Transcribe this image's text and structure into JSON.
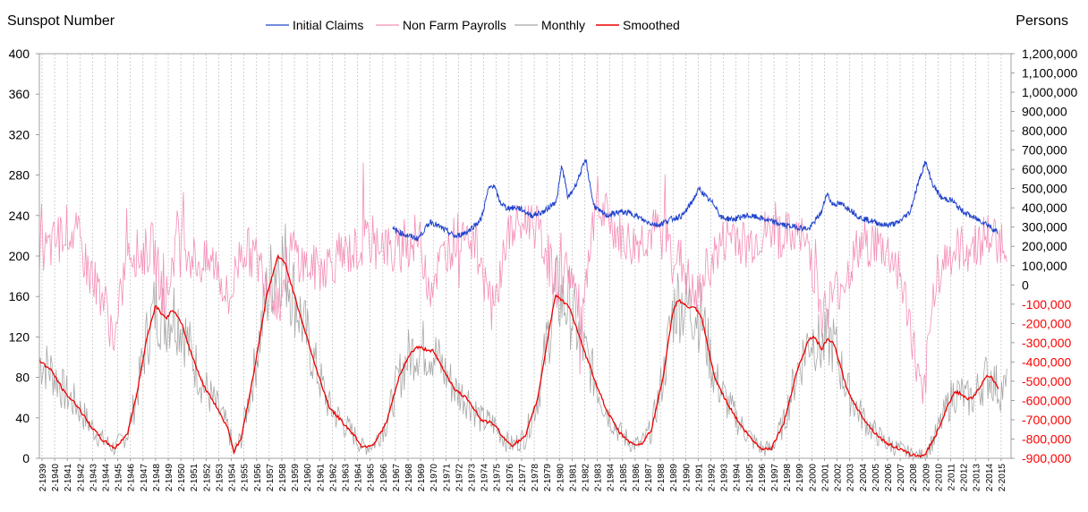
{
  "chart_data": {
    "type": "line",
    "left_axis": {
      "title": "Sunspot Number",
      "min": 0,
      "max": 400,
      "ticks": [
        0,
        40,
        80,
        120,
        160,
        200,
        240,
        280,
        320,
        360,
        400
      ]
    },
    "right_axis": {
      "title": "Persons",
      "min": -900000,
      "max": 1200000,
      "ticks": [
        -900000,
        -800000,
        -700000,
        -600000,
        -500000,
        -400000,
        -300000,
        -200000,
        -100000,
        0,
        100000,
        200000,
        300000,
        400000,
        500000,
        600000,
        700000,
        800000,
        900000,
        1000000,
        1100000,
        1200000
      ],
      "tick_labels": [
        "-900,000",
        "-800,000",
        "-700,000",
        "-600,000",
        "-500,000",
        "-400,000",
        "-300,000",
        "-200,000",
        "-100,000",
        "0",
        "100,000",
        "200,000",
        "300,000",
        "400,000",
        "500,000",
        "600,000",
        "700,000",
        "800,000",
        "900,000",
        "1,000,000",
        "1,100,000",
        "1,200,000"
      ],
      "negative_color": "#ff0000"
    },
    "x_axis": {
      "start_year": 1939,
      "end_year": 2015,
      "label_prefix": "2-"
    },
    "legend": [
      "Initial Claims",
      "Non Farm Payrolls",
      "Monthly",
      "Smoothed"
    ],
    "colors": {
      "Initial Claims": "#2244cc",
      "Non Farm Payrolls": "#f48fb8",
      "Monthly": "#a8a8a8",
      "Smoothed": "#ee0000"
    },
    "series": [
      {
        "name": "Smoothed",
        "axis": "left",
        "x": [
          1939.0,
          1940.0,
          1941.0,
          1942.0,
          1943.0,
          1944.0,
          1945.0,
          1946.0,
          1946.7,
          1947.5,
          1948.2,
          1948.6,
          1949.0,
          1949.6,
          1950.3,
          1951.0,
          1952.0,
          1953.0,
          1954.0,
          1954.4,
          1955.0,
          1956.0,
          1957.0,
          1957.9,
          1958.5,
          1959.0,
          1960.0,
          1961.0,
          1962.0,
          1963.0,
          1964.0,
          1964.6,
          1965.5,
          1966.5,
          1967.5,
          1968.3,
          1968.9,
          1969.5,
          1970.2,
          1971.0,
          1972.0,
          1973.0,
          1974.0,
          1975.0,
          1976.0,
          1976.5,
          1977.5,
          1978.5,
          1979.3,
          1979.9,
          1980.5,
          1981.0,
          1982.0,
          1983.0,
          1984.0,
          1985.0,
          1986.0,
          1986.7,
          1987.5,
          1988.5,
          1989.2,
          1989.6,
          1990.3,
          1991.0,
          1991.5,
          1992.5,
          1993.5,
          1994.5,
          1995.5,
          1996.3,
          1997.0,
          1998.0,
          1999.0,
          2000.0,
          2000.4,
          2001.0,
          2001.5,
          2002.0,
          2003.0,
          2004.0,
          2005.0,
          2006.0,
          2007.0,
          2008.0,
          2008.7,
          2009.2,
          2010.0,
          2011.0,
          2011.5,
          2012.0,
          2012.5,
          2013.0,
          2013.5,
          2014.0,
          2014.4,
          2014.7,
          2015.0
        ],
        "values": [
          97,
          86,
          65,
          52,
          33,
          18,
          10,
          25,
          62,
          118,
          151,
          145,
          138,
          147,
          132,
          105,
          72,
          52,
          28,
          6,
          20,
          85,
          160,
          200,
          192,
          170,
          128,
          86,
          50,
          36,
          22,
          11,
          14,
          35,
          80,
          102,
          110,
          108,
          106,
          88,
          67,
          58,
          38,
          34,
          17,
          13,
          21,
          60,
          120,
          162,
          155,
          150,
          112,
          78,
          46,
          25,
          14,
          14,
          28,
          85,
          145,
          157,
          150,
          148,
          138,
          80,
          55,
          34,
          18,
          9,
          10,
          35,
          85,
          118,
          120,
          108,
          118,
          112,
          68,
          45,
          28,
          16,
          10,
          4,
          2,
          4,
          22,
          52,
          66,
          64,
          58,
          60,
          70,
          80,
          82,
          75,
          68
        ]
      },
      {
        "name": "Initial Claims",
        "axis": "right",
        "x": [
          1967.0,
          1968.0,
          1969.0,
          1970.0,
          1971.0,
          1972.0,
          1973.0,
          1974.0,
          1974.6,
          1975.0,
          1975.5,
          1976.0,
          1977.0,
          1978.0,
          1979.0,
          1980.0,
          1980.4,
          1980.9,
          1981.5,
          1982.3,
          1982.9,
          1983.4,
          1984.0,
          1985.0,
          1986.0,
          1987.0,
          1988.0,
          1989.0,
          1990.0,
          1990.7,
          1991.3,
          1991.9,
          1992.6,
          1993.0,
          1994.0,
          1995.0,
          1996.0,
          1997.0,
          1998.0,
          1999.0,
          2000.0,
          2001.0,
          2001.4,
          2001.8,
          2002.5,
          2003.3,
          2004.0,
          2005.0,
          2006.0,
          2007.0,
          2008.0,
          2008.6,
          2009.2,
          2009.8,
          2010.5,
          2011.3,
          2012.0,
          2013.0,
          2014.0,
          2014.6,
          2015.0
        ],
        "values": [
          290000,
          260000,
          240000,
          330000,
          290000,
          250000,
          280000,
          340000,
          500000,
          520000,
          430000,
          400000,
          400000,
          360000,
          380000,
          440000,
          620000,
          450000,
          520000,
          650000,
          420000,
          380000,
          360000,
          380000,
          370000,
          330000,
          310000,
          340000,
          360000,
          430000,
          500000,
          450000,
          410000,
          350000,
          340000,
          360000,
          350000,
          330000,
          310000,
          300000,
          290000,
          380000,
          480000,
          420000,
          420000,
          390000,
          350000,
          330000,
          310000,
          320000,
          380000,
          520000,
          640000,
          520000,
          450000,
          440000,
          390000,
          350000,
          320000,
          290000,
          270000
        ]
      },
      {
        "name": "Non Farm Payrolls",
        "axis": "right",
        "x": [
          1939.0,
          1940.0,
          1941.0,
          1942.0,
          1943.0,
          1944.0,
          1945.0,
          1946.0,
          1947.0,
          1948.0,
          1949.0,
          1950.0,
          1951.0,
          1952.0,
          1953.0,
          1954.0,
          1955.0,
          1956.0,
          1957.0,
          1958.0,
          1959.0,
          1960.0,
          1961.0,
          1962.0,
          1963.0,
          1964.0,
          1965.0,
          1966.0,
          1967.0,
          1968.0,
          1969.0,
          1970.0,
          1971.0,
          1972.0,
          1973.0,
          1974.0,
          1975.0,
          1976.0,
          1977.0,
          1978.0,
          1979.0,
          1980.0,
          1981.0,
          1982.0,
          1983.0,
          1984.0,
          1985.0,
          1986.0,
          1987.0,
          1988.0,
          1989.0,
          1990.0,
          1991.0,
          1992.0,
          1993.0,
          1994.0,
          1995.0,
          1996.0,
          1997.0,
          1998.0,
          1999.0,
          2000.0,
          2001.0,
          2002.0,
          2003.0,
          2004.0,
          2005.0,
          2006.0,
          2007.0,
          2008.0,
          2009.0,
          2010.0,
          2011.0,
          2012.0,
          2013.0,
          2014.0,
          2015.0
        ],
        "values": [
          150000,
          200000,
          300000,
          250000,
          50000,
          -50000,
          -300000,
          200000,
          150000,
          200000,
          -100000,
          300000,
          150000,
          100000,
          120000,
          -100000,
          200000,
          150000,
          50000,
          -100000,
          200000,
          100000,
          80000,
          120000,
          150000,
          180000,
          220000,
          250000,
          150000,
          200000,
          250000,
          0,
          150000,
          250000,
          300000,
          100000,
          -150000,
          250000,
          300000,
          350000,
          200000,
          0,
          100000,
          -200000,
          350000,
          350000,
          250000,
          200000,
          250000,
          280000,
          200000,
          100000,
          -100000,
          100000,
          200000,
          280000,
          200000,
          250000,
          280000,
          250000,
          250000,
          200000,
          -150000,
          -50000,
          50000,
          200000,
          220000,
          180000,
          100000,
          -200000,
          -650000,
          50000,
          150000,
          180000,
          200000,
          250000,
          230000
        ]
      },
      {
        "name": "Monthly",
        "axis": "left",
        "note": "monthly sunspot numbers scatter around the Smoothed curve"
      }
    ]
  }
}
